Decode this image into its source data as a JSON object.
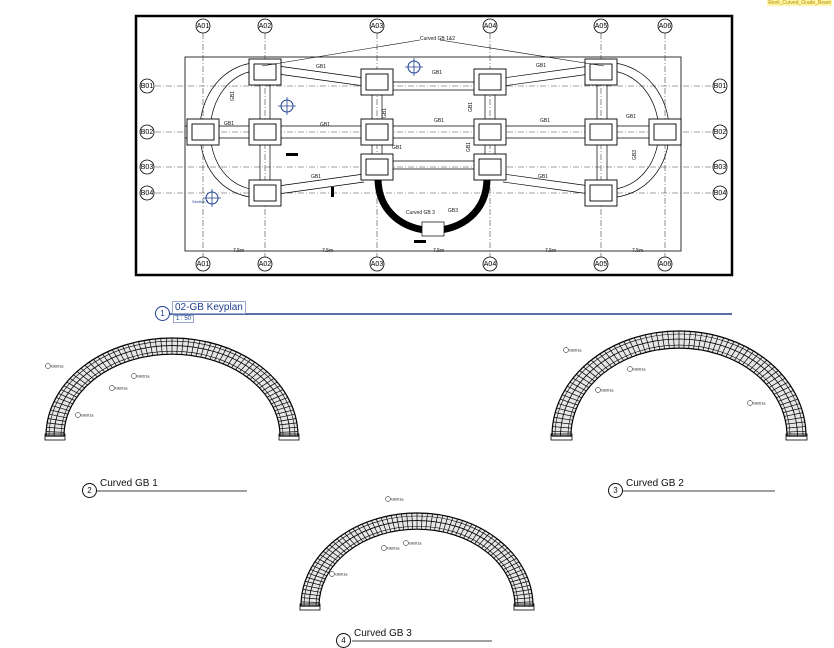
{
  "sheet": {
    "corner_link": "Revit_Curved_Grade_Beam"
  },
  "keyplan": {
    "grid_cols": [
      "A01",
      "A02",
      "A03",
      "A04",
      "A05",
      "A06"
    ],
    "grid_rows": [
      "B01",
      "B02",
      "B03",
      "B04"
    ],
    "beam_tag": "GB1",
    "beam_tag_curved": "GB3",
    "callout_top": "Curved GB 1&2",
    "callout_mid": "Curved GB 3",
    "section_label": "Section 1",
    "dim_label": "7.5m"
  },
  "views": [
    {
      "number": "1",
      "title": "02-GB Keyplan",
      "scale": "1 : 50"
    },
    {
      "number": "2",
      "title": "Curved GB 1"
    },
    {
      "number": "3",
      "title": "Curved GB 2"
    },
    {
      "number": "4",
      "title": "Curved GB 3"
    }
  ],
  "rebar_tag": "GB01a"
}
